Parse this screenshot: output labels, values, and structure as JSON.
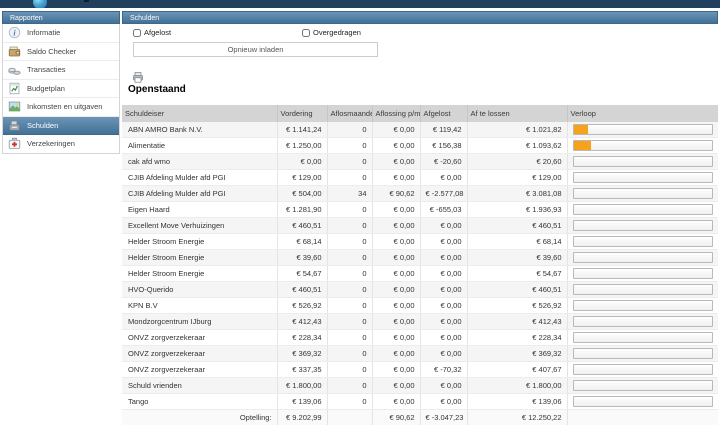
{
  "colors": {
    "accent": "#4a7da7",
    "topbar": "#21405f",
    "progress": "#f7a21b",
    "table_header": "#d4d4d4"
  },
  "sidebar": {
    "header": "Rapporten",
    "items": [
      {
        "label": "Informatie",
        "icon": "info-icon",
        "selected": false
      },
      {
        "label": "Saldo Checker",
        "icon": "wallet-icon",
        "selected": false
      },
      {
        "label": "Transacties",
        "icon": "coins-icon",
        "selected": false
      },
      {
        "label": "Budgetplan",
        "icon": "chart-document-icon",
        "selected": false
      },
      {
        "label": "Inkomsten en uitgaven",
        "icon": "picture-icon",
        "selected": false
      },
      {
        "label": "Schulden",
        "icon": "cash-register-icon",
        "selected": true
      },
      {
        "label": "Verzekeringen",
        "icon": "first-aid-icon",
        "selected": false
      }
    ]
  },
  "main": {
    "header": "Schulden",
    "filters": [
      {
        "label": "Afgelost",
        "checked": false
      },
      {
        "label": "Overgedragen",
        "checked": false
      }
    ],
    "reload_button": "Opnieuw inladen",
    "print_icon": "printer-icon",
    "section_title": "Openstaand",
    "table": {
      "columns": [
        "Schuldeiser",
        "Vordering",
        "Aflosmaanden",
        "Aflossing p/m",
        "Afgelost",
        "Af te lossen",
        "Verloop"
      ],
      "rows": [
        {
          "schuldeiser": "ABN AMRO Bank N.V.",
          "vordering": "€ 1.141,24",
          "aflosmaanden": "0",
          "aflossing_pm": "€ 0,00",
          "afgelost": "€ 119,42",
          "af_te_lossen": "€ 1.021,82",
          "verloop_pct": 10.5
        },
        {
          "schuldeiser": "Alimentatie",
          "vordering": "€ 1.250,00",
          "aflosmaanden": "0",
          "aflossing_pm": "€ 0,00",
          "afgelost": "€ 156,38",
          "af_te_lossen": "€ 1.093,62",
          "verloop_pct": 12.5
        },
        {
          "schuldeiser": "cak afd wmo",
          "vordering": "€ 0,00",
          "aflosmaanden": "0",
          "aflossing_pm": "€ 0,00",
          "afgelost": "€ -20,60",
          "af_te_lossen": "€ 20,60",
          "verloop_pct": 0
        },
        {
          "schuldeiser": "CJIB Afdeling Mulder afd PGI",
          "vordering": "€ 129,00",
          "aflosmaanden": "0",
          "aflossing_pm": "€ 0,00",
          "afgelost": "€ 0,00",
          "af_te_lossen": "€ 129,00",
          "verloop_pct": 0
        },
        {
          "schuldeiser": "CJIB Afdeling Mulder afd PGI",
          "vordering": "€ 504,00",
          "aflosmaanden": "34",
          "aflossing_pm": "€ 90,62",
          "afgelost": "€ -2.577,08",
          "af_te_lossen": "€ 3.081,08",
          "verloop_pct": 0
        },
        {
          "schuldeiser": "Eigen Haard",
          "vordering": "€ 1.281,90",
          "aflosmaanden": "0",
          "aflossing_pm": "€ 0,00",
          "afgelost": "€ -655,03",
          "af_te_lossen": "€ 1.936,93",
          "verloop_pct": 0
        },
        {
          "schuldeiser": "Excellent Move Verhuizingen",
          "vordering": "€ 460,51",
          "aflosmaanden": "0",
          "aflossing_pm": "€ 0,00",
          "afgelost": "€ 0,00",
          "af_te_lossen": "€ 460,51",
          "verloop_pct": 0
        },
        {
          "schuldeiser": "Helder Stroom Energie",
          "vordering": "€ 68,14",
          "aflosmaanden": "0",
          "aflossing_pm": "€ 0,00",
          "afgelost": "€ 0,00",
          "af_te_lossen": "€ 68,14",
          "verloop_pct": 0
        },
        {
          "schuldeiser": "Helder Stroom Energie",
          "vordering": "€ 39,60",
          "aflosmaanden": "0",
          "aflossing_pm": "€ 0,00",
          "afgelost": "€ 0,00",
          "af_te_lossen": "€ 39,60",
          "verloop_pct": 0
        },
        {
          "schuldeiser": "Helder Stroom Energie",
          "vordering": "€ 54,67",
          "aflosmaanden": "0",
          "aflossing_pm": "€ 0,00",
          "afgelost": "€ 0,00",
          "af_te_lossen": "€ 54,67",
          "verloop_pct": 0
        },
        {
          "schuldeiser": "HVO-Querido",
          "vordering": "€ 460,51",
          "aflosmaanden": "0",
          "aflossing_pm": "€ 0,00",
          "afgelost": "€ 0,00",
          "af_te_lossen": "€ 460,51",
          "verloop_pct": 0
        },
        {
          "schuldeiser": "KPN B.V",
          "vordering": "€ 526,92",
          "aflosmaanden": "0",
          "aflossing_pm": "€ 0,00",
          "afgelost": "€ 0,00",
          "af_te_lossen": "€ 526,92",
          "verloop_pct": 0
        },
        {
          "schuldeiser": "Mondzorgcentrum IJburg",
          "vordering": "€ 412,43",
          "aflosmaanden": "0",
          "aflossing_pm": "€ 0,00",
          "afgelost": "€ 0,00",
          "af_te_lossen": "€ 412,43",
          "verloop_pct": 0
        },
        {
          "schuldeiser": "ONVZ zorgverzekeraar",
          "vordering": "€ 228,34",
          "aflosmaanden": "0",
          "aflossing_pm": "€ 0,00",
          "afgelost": "€ 0,00",
          "af_te_lossen": "€ 228,34",
          "verloop_pct": 0
        },
        {
          "schuldeiser": "ONVZ zorgverzekeraar",
          "vordering": "€ 369,32",
          "aflosmaanden": "0",
          "aflossing_pm": "€ 0,00",
          "afgelost": "€ 0,00",
          "af_te_lossen": "€ 369,32",
          "verloop_pct": 0
        },
        {
          "schuldeiser": "ONVZ zorgverzekeraar",
          "vordering": "€ 337,35",
          "aflosmaanden": "0",
          "aflossing_pm": "€ 0,00",
          "afgelost": "€ -70,32",
          "af_te_lossen": "€ 407,67",
          "verloop_pct": 0
        },
        {
          "schuldeiser": "Schuld vrienden",
          "vordering": "€ 1.800,00",
          "aflosmaanden": "0",
          "aflossing_pm": "€ 0,00",
          "afgelost": "€ 0,00",
          "af_te_lossen": "€ 1.800,00",
          "verloop_pct": 0
        },
        {
          "schuldeiser": "Tango",
          "vordering": "€ 139,06",
          "aflosmaanden": "0",
          "aflossing_pm": "€ 0,00",
          "afgelost": "€ 0,00",
          "af_te_lossen": "€ 139,06",
          "verloop_pct": 0
        }
      ],
      "totals": {
        "label": "Optelling:",
        "vordering": "€ 9.202,99",
        "aflosmaanden": "",
        "aflossing_pm": "€ 90,62",
        "afgelost": "€ -3.047,23",
        "af_te_lossen": "€ 12.250,22"
      }
    }
  }
}
